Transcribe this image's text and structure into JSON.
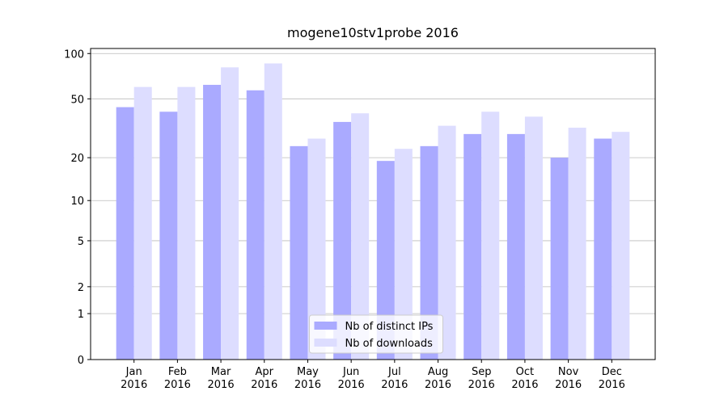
{
  "chart_data": {
    "type": "bar",
    "title": "mogene10stv1probe 2016",
    "categories": [
      "Jan\n2016",
      "Feb\n2016",
      "Mar\n2016",
      "Apr\n2016",
      "May\n2016",
      "Jun\n2016",
      "Jul\n2016",
      "Aug\n2016",
      "Sep\n2016",
      "Oct\n2016",
      "Nov\n2016",
      "Dec\n2016"
    ],
    "series": [
      {
        "name": "Nb of distinct IPs",
        "color": "#aaaaff",
        "values": [
          44,
          41,
          62,
          57,
          24,
          35,
          19,
          24,
          29,
          29,
          20,
          27
        ]
      },
      {
        "name": "Nb of downloads",
        "color": "#ddddff",
        "values": [
          60,
          60,
          81,
          86,
          27,
          40,
          23,
          33,
          41,
          38,
          32,
          30
        ]
      }
    ],
    "y_scale": "log1p",
    "ylim": [
      0,
      108
    ],
    "yticks": [
      0,
      1,
      2,
      5,
      10,
      20,
      50,
      100
    ],
    "grid": true,
    "legend": "lower center"
  }
}
